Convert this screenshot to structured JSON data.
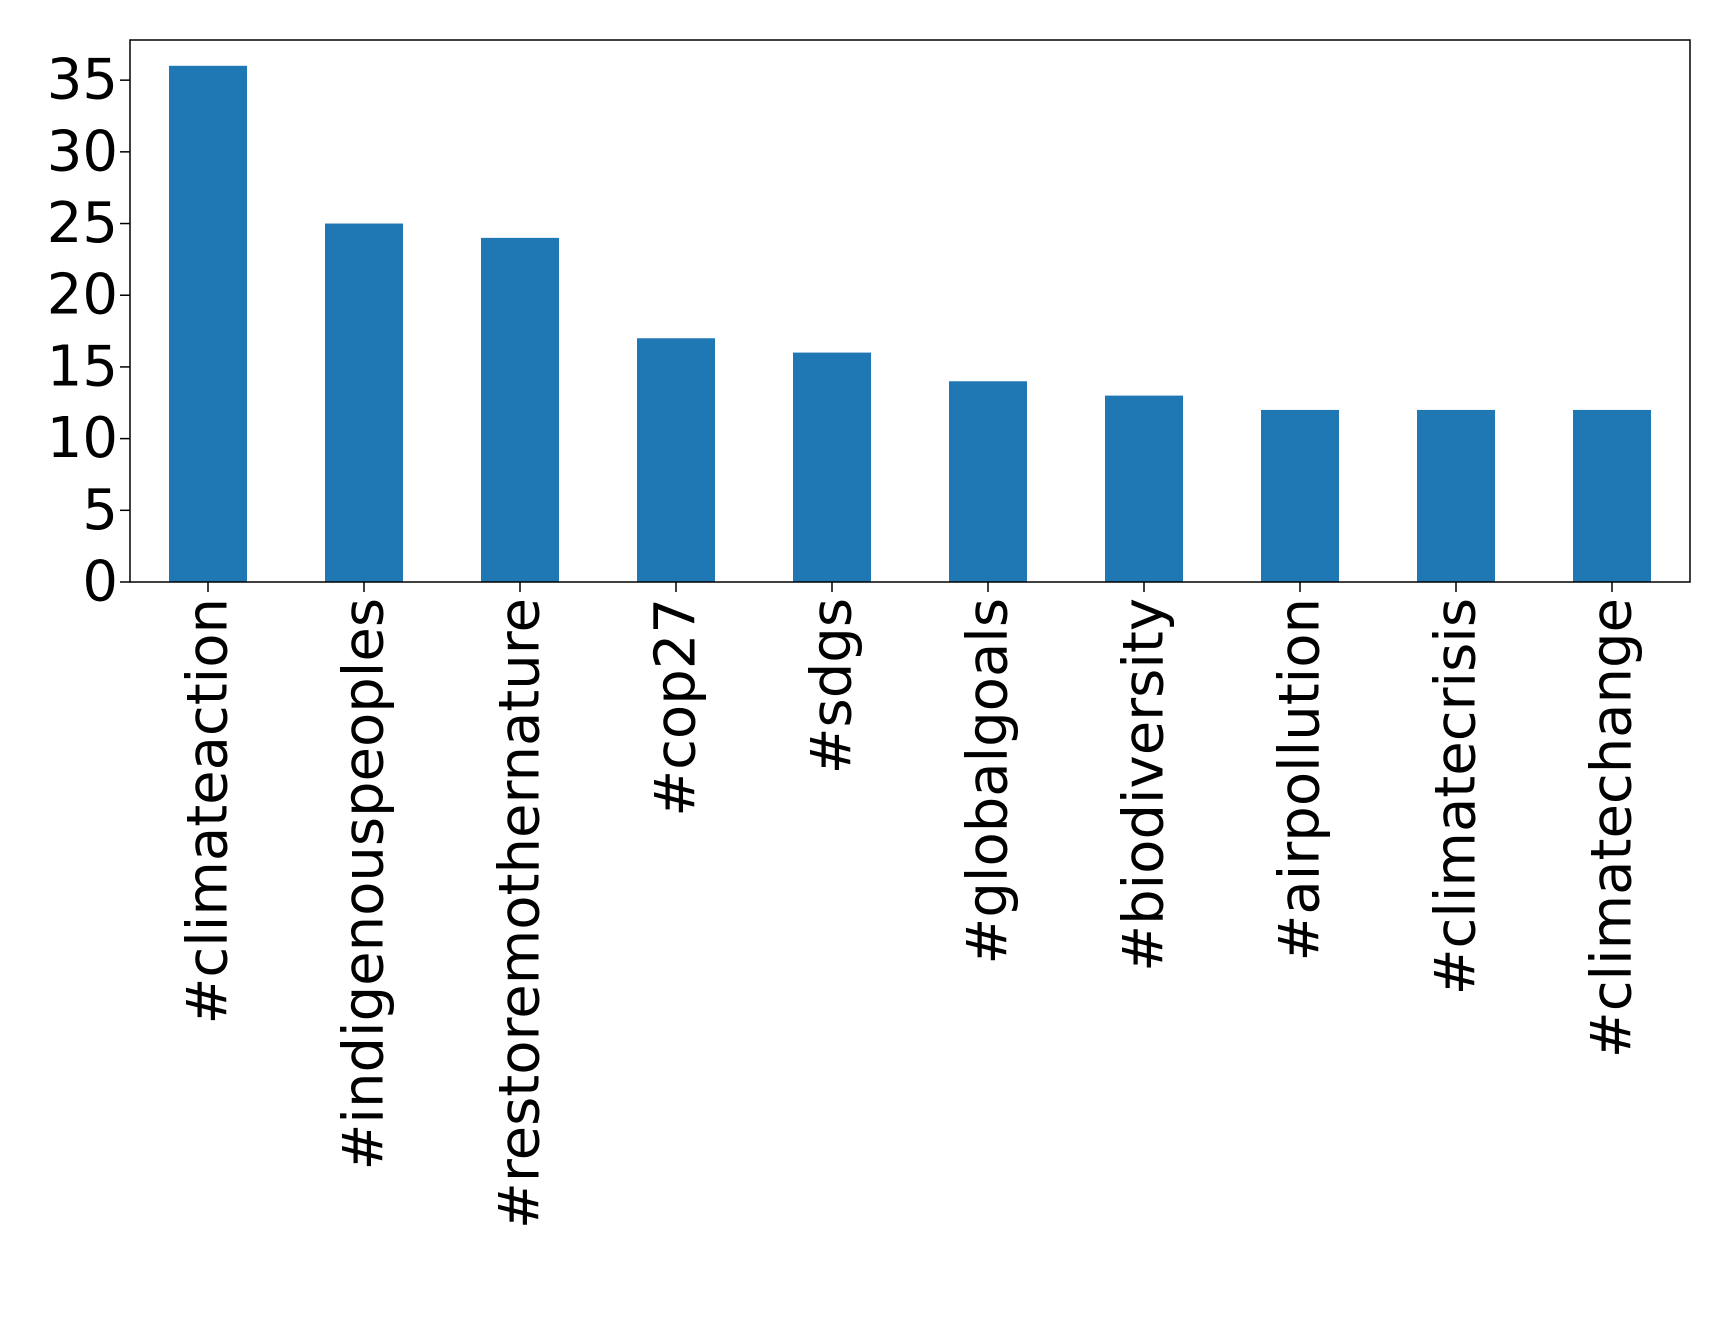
{
  "chart_data": {
    "type": "bar",
    "title": "",
    "xlabel": "",
    "ylabel": "",
    "categories": [
      "#climateaction",
      "#indigenouspeoples",
      "#restoremothernature",
      "#cop27",
      "#sdgs",
      "#globalgoals",
      "#biodiversity",
      "#airpollution",
      "#climatecrisis",
      "#climatechange"
    ],
    "values": [
      36,
      25,
      24,
      17,
      16,
      14,
      13,
      12,
      12,
      12
    ],
    "ylim": [
      0,
      37.8
    ],
    "yticks": [
      0,
      5,
      10,
      15,
      20,
      25,
      30,
      35
    ],
    "grid": false,
    "legend": "none",
    "bar_color": "#1f77b4"
  }
}
